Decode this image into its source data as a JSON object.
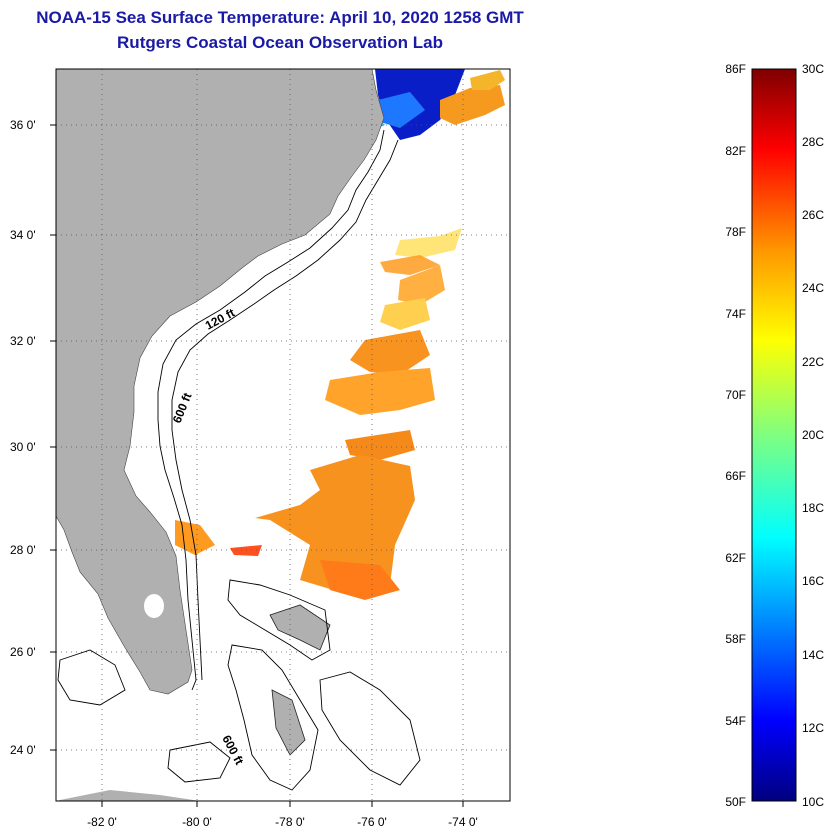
{
  "title": {
    "line1": "NOAA-15 Sea Surface Temperature:  April 10, 2020 1258 GMT",
    "line2": "Rutgers Coastal Ocean Observation Lab"
  },
  "map": {
    "lon_range": [
      -83,
      -73
    ],
    "lat_range": [
      23,
      37.2
    ],
    "lat_ticks": [
      {
        "value": 36,
        "label": "36 0'"
      },
      {
        "value": 34,
        "label": "34 0'"
      },
      {
        "value": 32,
        "label": "32 0'"
      },
      {
        "value": 30,
        "label": "30 0'"
      },
      {
        "value": 28,
        "label": "28 0'"
      },
      {
        "value": 26,
        "label": "26 0'"
      },
      {
        "value": 24,
        "label": "24 0'"
      }
    ],
    "lon_ticks": [
      {
        "value": -82,
        "label": "-82 0'"
      },
      {
        "value": -80,
        "label": "-80 0'"
      },
      {
        "value": -78,
        "label": "-78 0'"
      },
      {
        "value": -76,
        "label": "-76 0'"
      },
      {
        "value": -74,
        "label": "-74 0'"
      }
    ],
    "contour_labels": {
      "c120": "120 ft",
      "c600_north": "600 ft",
      "c600_south": "600 ft"
    },
    "colors": {
      "land": "#b0b0b0",
      "ocean": "#ffffff",
      "grid": "#555555"
    }
  },
  "colorbar": {
    "f_labels": [
      "86F",
      "82F",
      "78F",
      "74F",
      "70F",
      "66F",
      "62F",
      "58F",
      "54F",
      "50F"
    ],
    "c_labels": [
      "30C",
      "28C",
      "26C",
      "24C",
      "22C",
      "20C",
      "18C",
      "16C",
      "14C",
      "12C",
      "10C"
    ],
    "range_c": [
      10,
      30
    ],
    "range_f": [
      50,
      86
    ]
  }
}
